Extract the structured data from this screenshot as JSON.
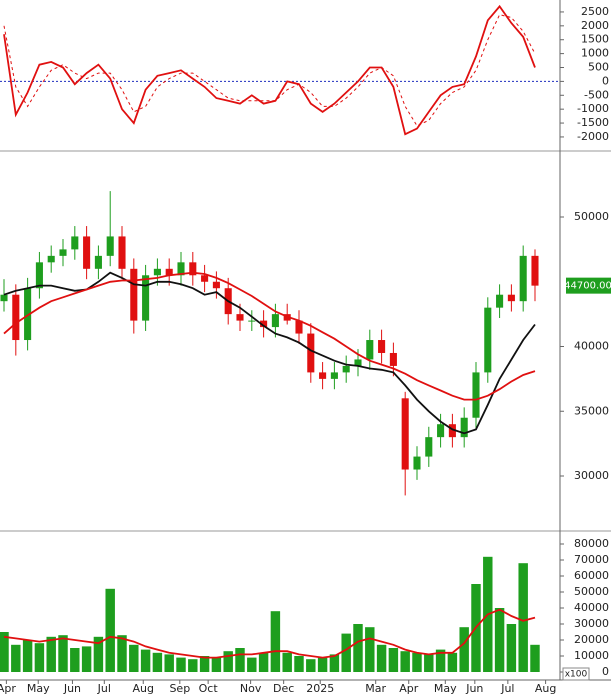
{
  "chart_data": [
    {
      "type": "line",
      "x": [
        0,
        1,
        2,
        3,
        4,
        5,
        6,
        7,
        8,
        9,
        10,
        11,
        12,
        13,
        14,
        15,
        16,
        17,
        18,
        19,
        20,
        21,
        22,
        23,
        24,
        25,
        26,
        27,
        28,
        29,
        30,
        31,
        32,
        33,
        34,
        35,
        36,
        37,
        38,
        39,
        40,
        41,
        42,
        43,
        44,
        45
      ],
      "xlim": [
        -0.34,
        47.12
      ],
      "ylim": [
        -2470,
        2930
      ],
      "yticks": [
        2500,
        2000,
        1500,
        1000,
        500,
        0,
        -500,
        -1000,
        -1500,
        -2000
      ],
      "reference_line": 0,
      "reference_color": "#1f2fbf",
      "series": [
        {
          "color": "#e01010",
          "dash": false,
          "values": [
            1700,
            -1200,
            -400,
            600,
            700,
            500,
            -100,
            300,
            600,
            100,
            -1000,
            -1500,
            -300,
            200,
            300,
            400,
            100,
            -200,
            -600,
            -700,
            -800,
            -500,
            -800,
            -700,
            0,
            -100,
            -800,
            -1100,
            -800,
            -400,
            0,
            500,
            500,
            -200,
            -1900,
            -1700,
            -1100,
            -500,
            -200,
            -100,
            900,
            2200,
            2700,
            2100,
            1600,
            500
          ]
        },
        {
          "color": "#e01010",
          "dash": true,
          "values": [
            2000,
            -200,
            -900,
            -200,
            400,
            600,
            300,
            100,
            300,
            300,
            -300,
            -1100,
            -900,
            -200,
            100,
            300,
            300,
            0,
            -300,
            -600,
            -700,
            -700,
            -700,
            -700,
            -300,
            -100,
            -400,
            -900,
            -900,
            -600,
            -200,
            300,
            500,
            200,
            -900,
            -1600,
            -1400,
            -800,
            -400,
            -200,
            400,
            1500,
            2400,
            2300,
            1800,
            1000
          ]
        }
      ]
    },
    {
      "type": "candlestick",
      "x": [
        0,
        1,
        2,
        3,
        4,
        5,
        6,
        7,
        8,
        9,
        10,
        11,
        12,
        13,
        14,
        15,
        16,
        17,
        18,
        19,
        20,
        21,
        22,
        23,
        24,
        25,
        26,
        27,
        28,
        29,
        30,
        31,
        32,
        33,
        34,
        35,
        36,
        37,
        38,
        39,
        40,
        41,
        42,
        43,
        44,
        45
      ],
      "xlim": [
        -0.34,
        47.12
      ],
      "ylim": [
        25830,
        55020
      ],
      "yticks": [
        50000,
        40000,
        35000,
        30000
      ],
      "up_color": "#1e9e1e",
      "down_color": "#e01010",
      "open": [
        43500,
        44000,
        40500,
        44500,
        46500,
        47000,
        47500,
        48500,
        46000,
        47000,
        48500,
        46000,
        42000,
        45500,
        46000,
        45500,
        46500,
        45500,
        45000,
        44500,
        42500,
        42000,
        42000,
        41500,
        42500,
        42000,
        41000,
        38000,
        37500,
        38000,
        38500,
        39000,
        40500,
        39500,
        36000,
        30500,
        31500,
        33000,
        34000,
        33000,
        34500,
        38000,
        43000,
        44000,
        43500,
        47000
      ],
      "high": [
        45200,
        44800,
        45300,
        47300,
        47800,
        48300,
        49300,
        49300,
        47800,
        52000,
        49300,
        46800,
        46300,
        46800,
        46800,
        47300,
        47300,
        46300,
        45800,
        45300,
        43300,
        42800,
        42800,
        43300,
        43300,
        42800,
        41800,
        38800,
        38800,
        39300,
        39800,
        41300,
        41300,
        40300,
        36500,
        32300,
        33800,
        34800,
        34800,
        35300,
        38800,
        43800,
        44800,
        44800,
        47800,
        47500
      ],
      "low": [
        42700,
        39300,
        39700,
        43700,
        45700,
        46200,
        46700,
        45200,
        45200,
        46200,
        45200,
        41000,
        41200,
        44700,
        44700,
        44700,
        44700,
        44200,
        43700,
        41700,
        41200,
        41200,
        40700,
        40700,
        41700,
        40200,
        37200,
        36700,
        36700,
        37200,
        37700,
        38200,
        38700,
        37700,
        28500,
        29700,
        30700,
        32200,
        32200,
        32200,
        33700,
        37200,
        42200,
        42700,
        42700,
        43500
      ],
      "close": [
        44000,
        40500,
        44500,
        46500,
        47000,
        47500,
        48500,
        46000,
        47000,
        48500,
        46000,
        42000,
        45500,
        46000,
        45500,
        46500,
        45500,
        45000,
        44500,
        42500,
        42000,
        42000,
        41500,
        42500,
        42000,
        41000,
        38000,
        37500,
        38000,
        38500,
        39000,
        40500,
        39500,
        38500,
        30500,
        31500,
        33000,
        34000,
        33000,
        34500,
        38000,
        43000,
        44000,
        43500,
        47000,
        44700
      ],
      "series": [
        {
          "color": "#111111",
          "values": [
            44000,
            44300,
            44500,
            44700,
            44700,
            44500,
            44300,
            44400,
            45000,
            45700,
            45300,
            44800,
            44700,
            45000,
            45000,
            44800,
            44500,
            44000,
            44200,
            43500,
            43000,
            42300,
            41600,
            41000,
            40700,
            40300,
            39700,
            39300,
            38900,
            38600,
            38500,
            38300,
            38200,
            38000,
            37000,
            35900,
            35000,
            34200,
            33600,
            33300,
            33600,
            35500,
            37500,
            39000,
            40500,
            41700
          ]
        },
        {
          "color": "#e01010",
          "values": [
            41000,
            41800,
            42400,
            43000,
            43500,
            43800,
            44100,
            44400,
            44700,
            45000,
            45100,
            45100,
            45200,
            45300,
            45500,
            45600,
            45700,
            45600,
            45300,
            44900,
            44400,
            43900,
            43300,
            42700,
            42300,
            42000,
            41600,
            41100,
            40600,
            40000,
            39400,
            38900,
            38600,
            38300,
            37900,
            37400,
            37000,
            36600,
            36200,
            35900,
            35900,
            36200,
            36700,
            37300,
            37800,
            38100
          ]
        }
      ],
      "last_price": {
        "value": 44700,
        "label": "44700.00"
      },
      "last_price_color": "#1e9e1e"
    },
    {
      "type": "bar",
      "x": [
        0,
        1,
        2,
        3,
        4,
        5,
        6,
        7,
        8,
        9,
        10,
        11,
        12,
        13,
        14,
        15,
        16,
        17,
        18,
        19,
        20,
        21,
        22,
        23,
        24,
        25,
        26,
        27,
        28,
        29,
        30,
        31,
        32,
        33,
        34,
        35,
        36,
        37,
        38,
        39,
        40,
        41,
        42,
        43,
        44,
        45
      ],
      "xlim": [
        -0.34,
        47.12
      ],
      "xticks": [
        {
          "value": 0.2,
          "label": "Apr"
        },
        {
          "value": 2.9,
          "label": "May"
        },
        {
          "value": 5.8,
          "label": "Jun"
        },
        {
          "value": 8.5,
          "label": "Jul"
        },
        {
          "value": 11.8,
          "label": "Aug"
        },
        {
          "value": 14.9,
          "label": "Sep"
        },
        {
          "value": 17.3,
          "label": "Oct"
        },
        {
          "value": 20.9,
          "label": "Nov"
        },
        {
          "value": 23.7,
          "label": "Dec"
        },
        {
          "value": 26.8,
          "label": "2025"
        },
        {
          "value": 31.5,
          "label": "Mar"
        },
        {
          "value": 34.3,
          "label": "Apr"
        },
        {
          "value": 37.4,
          "label": "May"
        },
        {
          "value": 39.9,
          "label": "Jun"
        },
        {
          "value": 42.7,
          "label": "Jul"
        },
        {
          "value": 45.9,
          "label": "Aug"
        }
      ],
      "ylim": [
        0,
        87500
      ],
      "yticks": [
        80000,
        70000,
        60000,
        50000,
        40000,
        30000,
        20000,
        10000,
        0
      ],
      "unit_label": "x100",
      "color": "#1e9e1e",
      "values": [
        25000,
        17000,
        20000,
        18000,
        22000,
        23000,
        15000,
        16000,
        22000,
        52000,
        23000,
        17000,
        14000,
        12000,
        11000,
        9000,
        8000,
        10000,
        9000,
        13000,
        15000,
        9000,
        12000,
        38000,
        12000,
        10000,
        8000,
        9000,
        11000,
        24000,
        30000,
        28000,
        17000,
        15000,
        13000,
        12000,
        11000,
        14000,
        12000,
        28000,
        55000,
        72000,
        40000,
        30000,
        68000,
        17000
      ],
      "series": [
        {
          "color": "#e01010",
          "values": [
            22000,
            21000,
            20000,
            19000,
            20000,
            21000,
            20000,
            19000,
            18000,
            22000,
            21000,
            19000,
            16000,
            14000,
            12000,
            11000,
            10000,
            9000,
            9000,
            10000,
            11000,
            11000,
            12000,
            13000,
            13000,
            11000,
            10000,
            9000,
            10000,
            14000,
            19000,
            21000,
            19000,
            17000,
            14000,
            12000,
            11000,
            12000,
            12000,
            18000,
            28000,
            36000,
            39000,
            35000,
            32000,
            34000
          ]
        }
      ]
    }
  ]
}
